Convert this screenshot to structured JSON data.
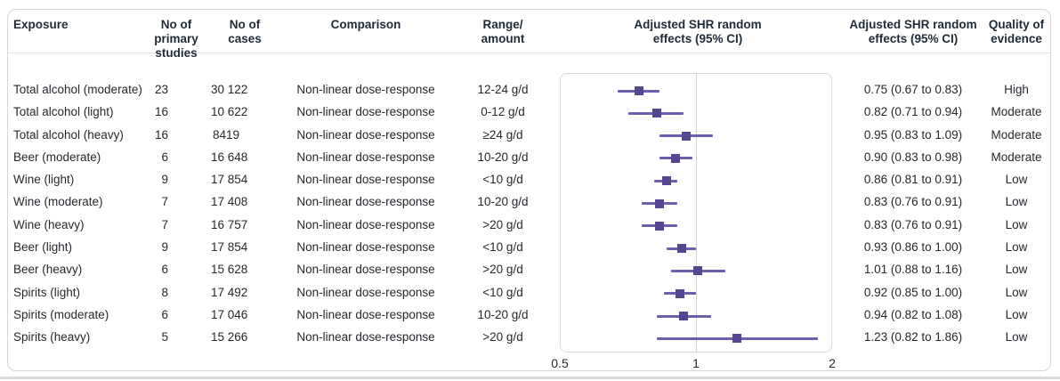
{
  "header": {
    "cols": [
      "Exposure",
      "No of primary\nstudies",
      "No of\ncases",
      "Comparison",
      "Range/\namount",
      "Adjusted SHR random\neffects (95% CI)",
      "Adjusted SHR random\neffects (95% CI)",
      "Quality of\nevidence"
    ]
  },
  "chart_data": {
    "type": "forest",
    "x_scale": "log2",
    "x_range": [
      0.5,
      2
    ],
    "reference_line": 1,
    "x_ticks": [
      {
        "value": 0.5,
        "label": "0.5"
      },
      {
        "value": 1,
        "label": "1"
      },
      {
        "value": 2,
        "label": "2"
      }
    ],
    "colors": {
      "marker": "#564692",
      "ci_line": "#6d5fad",
      "reference": "#cfd2d4"
    },
    "rows": [
      {
        "exposure": "Total alcohol (moderate)",
        "studies": "23",
        "cases": "30 122",
        "comparison": "Non-linear dose-response",
        "range": "12-24 g/d",
        "shr": 0.75,
        "ci_low": 0.67,
        "ci_high": 0.83,
        "shr_label": "0.75 (0.67 to 0.83)",
        "quality": "High"
      },
      {
        "exposure": "Total alcohol (light)",
        "studies": "16",
        "cases": "10 622",
        "comparison": "Non-linear dose-response",
        "range": "0-12 g/d",
        "shr": 0.82,
        "ci_low": 0.71,
        "ci_high": 0.94,
        "shr_label": "0.82 (0.71 to 0.94)",
        "quality": "Moderate"
      },
      {
        "exposure": "Total alcohol (heavy)",
        "studies": "16",
        "cases": "8419",
        "comparison": "Non-linear dose-response",
        "range": "≥24 g/d",
        "shr": 0.95,
        "ci_low": 0.83,
        "ci_high": 1.09,
        "shr_label": "0.95 (0.83 to 1.09)",
        "quality": "Moderate"
      },
      {
        "exposure": "Beer (moderate)",
        "studies": "6",
        "cases": "16 648",
        "comparison": "Non-linear dose-response",
        "range": "10-20 g/d",
        "shr": 0.9,
        "ci_low": 0.83,
        "ci_high": 0.98,
        "shr_label": "0.90 (0.83 to 0.98)",
        "quality": "Moderate"
      },
      {
        "exposure": "Wine (light)",
        "studies": "9",
        "cases": "17 854",
        "comparison": "Non-linear dose-response",
        "range": "<10 g/d",
        "shr": 0.86,
        "ci_low": 0.81,
        "ci_high": 0.91,
        "shr_label": "0.86 (0.81 to 0.91)",
        "quality": "Low"
      },
      {
        "exposure": "Wine (moderate)",
        "studies": "7",
        "cases": "17 408",
        "comparison": "Non-linear dose-response",
        "range": "10-20 g/d",
        "shr": 0.83,
        "ci_low": 0.76,
        "ci_high": 0.91,
        "shr_label": "0.83 (0.76 to 0.91)",
        "quality": "Low"
      },
      {
        "exposure": "Wine (heavy)",
        "studies": "7",
        "cases": "16 757",
        "comparison": "Non-linear dose-response",
        "range": ">20 g/d",
        "shr": 0.83,
        "ci_low": 0.76,
        "ci_high": 0.91,
        "shr_label": "0.83 (0.76 to 0.91)",
        "quality": "Low"
      },
      {
        "exposure": "Beer (light)",
        "studies": "9",
        "cases": "17 854",
        "comparison": "Non-linear dose-response",
        "range": "<10 g/d",
        "shr": 0.93,
        "ci_low": 0.86,
        "ci_high": 1.0,
        "shr_label": "0.93 (0.86 to 1.00)",
        "quality": "Low"
      },
      {
        "exposure": "Beer (heavy)",
        "studies": "6",
        "cases": "15 628",
        "comparison": "Non-linear dose-response",
        "range": ">20 g/d",
        "shr": 1.01,
        "ci_low": 0.88,
        "ci_high": 1.16,
        "shr_label": "1.01 (0.88 to 1.16)",
        "quality": "Low"
      },
      {
        "exposure": "Spirits (light)",
        "studies": "8",
        "cases": "17 492",
        "comparison": "Non-linear dose-response",
        "range": "<10 g/d",
        "shr": 0.92,
        "ci_low": 0.85,
        "ci_high": 1.0,
        "shr_label": "0.92 (0.85 to 1.00)",
        "quality": "Low"
      },
      {
        "exposure": "Spirits (moderate)",
        "studies": "6",
        "cases": "17 046",
        "comparison": "Non-linear dose-response",
        "range": "10-20 g/d",
        "shr": 0.94,
        "ci_low": 0.82,
        "ci_high": 1.08,
        "shr_label": "0.94 (0.82 to 1.08)",
        "quality": "Low"
      },
      {
        "exposure": "Spirits (heavy)",
        "studies": "5",
        "cases": "15 266",
        "comparison": "Non-linear dose-response",
        "range": ">20 g/d",
        "shr": 1.23,
        "ci_low": 0.82,
        "ci_high": 1.86,
        "shr_label": "1.23 (0.82 to 1.86)",
        "quality": "Low"
      }
    ]
  }
}
